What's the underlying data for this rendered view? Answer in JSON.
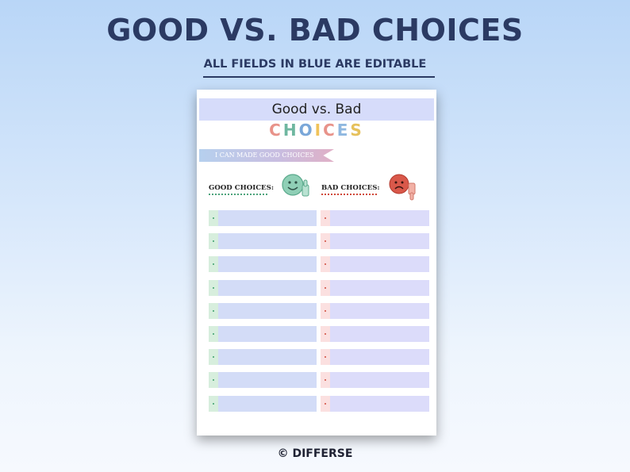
{
  "header": {
    "title": "GOOD VS. BAD CHOICES",
    "subtitle": "ALL FIELDS IN BLUE ARE EDITABLE"
  },
  "sheet": {
    "title": "Good vs. Bad",
    "choices_letters": [
      {
        "char": "C",
        "color": "#e8938a"
      },
      {
        "char": "H",
        "color": "#6fb7a0"
      },
      {
        "char": "O",
        "color": "#7aa7d9"
      },
      {
        "char": "I",
        "color": "#f0c35a"
      },
      {
        "char": "C",
        "color": "#e8938a"
      },
      {
        "char": "E",
        "color": "#8fb8e0"
      },
      {
        "char": "S",
        "color": "#e6c15c"
      }
    ],
    "ribbon_text": "I CAN MADE GOOD CHOICES",
    "good_label": "GOOD CHOICES:",
    "bad_label": "BAD CHOICES:",
    "good_icon": "thumbs-up-smiley-icon",
    "bad_icon": "thumbs-down-sad-icon",
    "rows": [
      {
        "good": "",
        "bad": ""
      },
      {
        "good": "",
        "bad": ""
      },
      {
        "good": "",
        "bad": ""
      },
      {
        "good": "",
        "bad": ""
      },
      {
        "good": "",
        "bad": ""
      },
      {
        "good": "",
        "bad": ""
      },
      {
        "good": "",
        "bad": ""
      },
      {
        "good": "",
        "bad": ""
      },
      {
        "good": "",
        "bad": ""
      }
    ]
  },
  "footer": {
    "copyright": "© DIFFERSE"
  },
  "colors": {
    "title_navy": "#2b3a63",
    "good_green": "#3aa06a",
    "bad_red": "#d04a3a",
    "field_blue": "#d3dcf7"
  }
}
